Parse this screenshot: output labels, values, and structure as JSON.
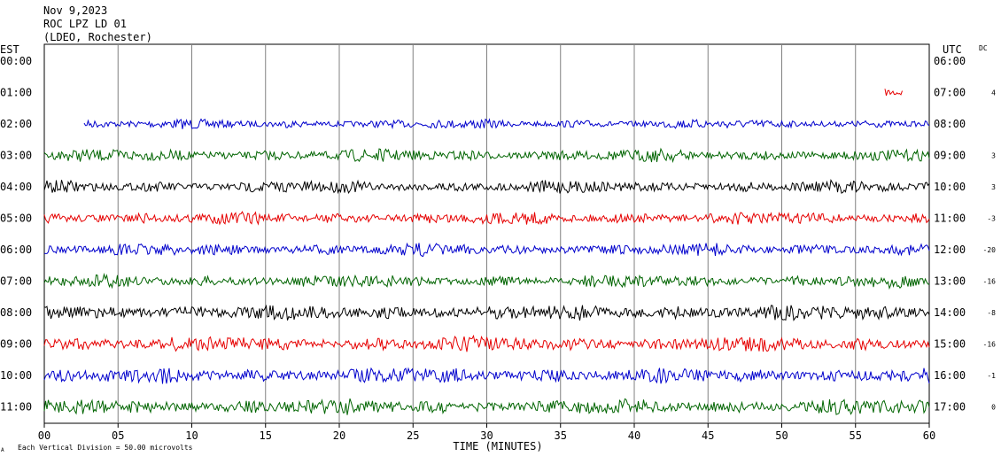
{
  "header": {
    "line1": "Nov 9,2023",
    "line2": "ROC LPZ LD 01",
    "line3": "(LDEO, Rochester)"
  },
  "labels": {
    "left_tz": "EST",
    "right_tz": "UTC",
    "dc": "DC",
    "xlabel": "TIME (MINUTES)",
    "footnote": "Each Vertical Division =   50.00 microvolts",
    "footnote_mark": "A"
  },
  "colors": {
    "blue": "#0000cc",
    "green": "#006400",
    "black": "#000000",
    "red": "#e60000",
    "grid": "#808080"
  },
  "chart_data": {
    "type": "line",
    "title": "ROC LPZ LD 01",
    "xlabel": "TIME (MINUTES)",
    "xlim": [
      0,
      60
    ],
    "x_ticks": [
      "00",
      "05",
      "10",
      "15",
      "20",
      "25",
      "30",
      "35",
      "40",
      "45",
      "50",
      "55",
      "60"
    ],
    "grid": true,
    "units": "microvolts",
    "vertical_division_microvolts": 50.0,
    "rows": [
      {
        "est": "00:00",
        "utc": "06:00",
        "dc": "",
        "color": "black",
        "start_min": null,
        "end_min": null,
        "amplitude": 0
      },
      {
        "est": "01:00",
        "utc": "07:00",
        "dc": "4",
        "color": "red",
        "start_min": 57.0,
        "end_min": 58.2,
        "amplitude": 3
      },
      {
        "est": "02:00",
        "utc": "08:00",
        "dc": "",
        "color": "blue",
        "start_min": 2.7,
        "end_min": 60,
        "amplitude": 3
      },
      {
        "est": "03:00",
        "utc": "09:00",
        "dc": "3",
        "color": "green",
        "start_min": 0,
        "end_min": 60,
        "amplitude": 4
      },
      {
        "est": "04:00",
        "utc": "10:00",
        "dc": "3",
        "color": "black",
        "start_min": 0,
        "end_min": 60,
        "amplitude": 4
      },
      {
        "est": "05:00",
        "utc": "11:00",
        "dc": "-3",
        "color": "red",
        "start_min": 0,
        "end_min": 60,
        "amplitude": 4
      },
      {
        "est": "06:00",
        "utc": "12:00",
        "dc": "-20",
        "color": "blue",
        "start_min": 0,
        "end_min": 60,
        "amplitude": 4
      },
      {
        "est": "07:00",
        "utc": "13:00",
        "dc": "-16",
        "color": "green",
        "start_min": 0,
        "end_min": 60,
        "amplitude": 4
      },
      {
        "est": "08:00",
        "utc": "14:00",
        "dc": "-8",
        "color": "black",
        "start_min": 0,
        "end_min": 60,
        "amplitude": 5
      },
      {
        "est": "09:00",
        "utc": "15:00",
        "dc": "-16",
        "color": "red",
        "start_min": 0,
        "end_min": 60,
        "amplitude": 5
      },
      {
        "est": "10:00",
        "utc": "16:00",
        "dc": "-1",
        "color": "blue",
        "start_min": 0,
        "end_min": 60,
        "amplitude": 5
      },
      {
        "est": "11:00",
        "utc": "17:00",
        "dc": "0",
        "color": "green",
        "start_min": 0,
        "end_min": 60,
        "amplitude": 5
      }
    ]
  }
}
